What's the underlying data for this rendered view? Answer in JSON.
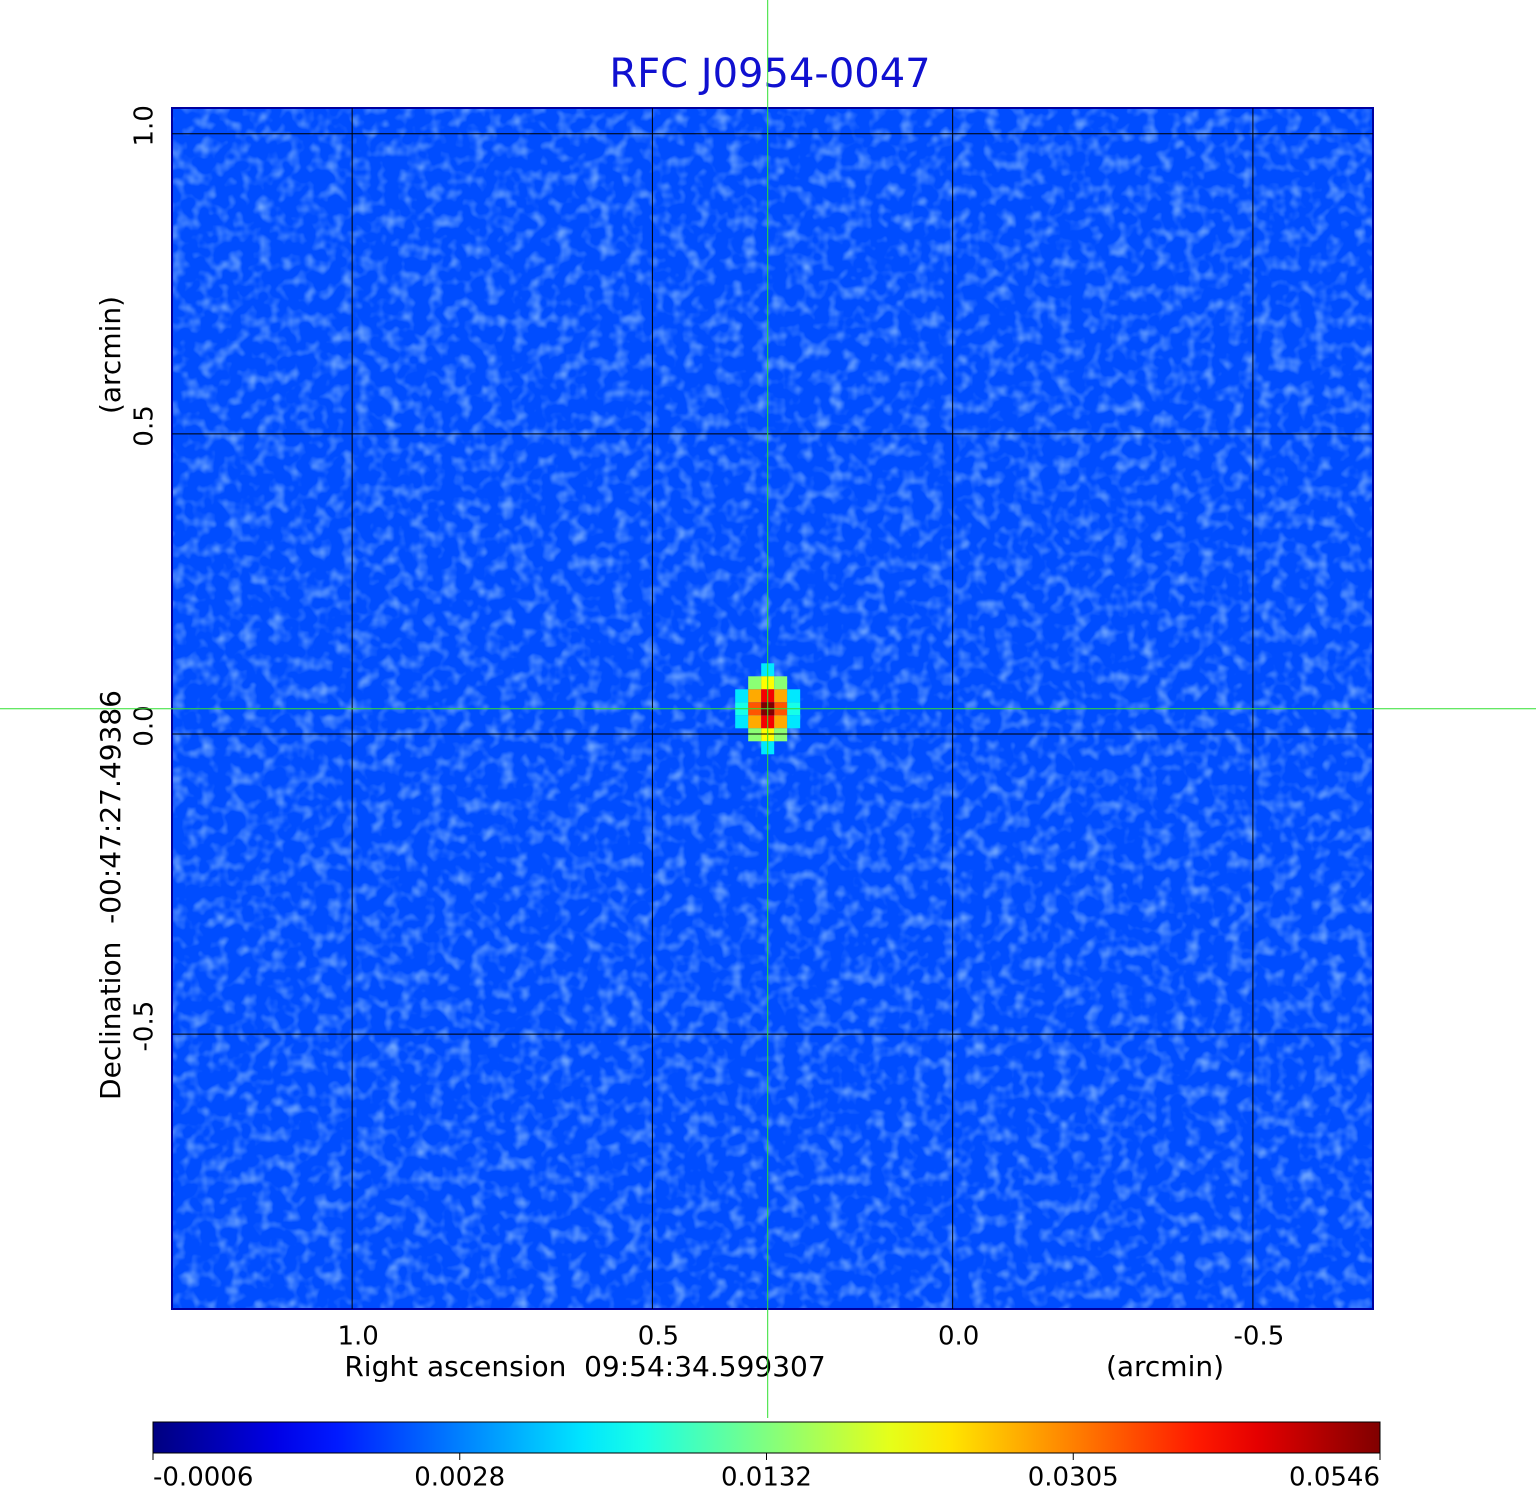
{
  "chart_data": {
    "type": "image",
    "title": "RFC J0954-0047",
    "x_label": "Right ascension  09:54:34.599307",
    "x_unit": "(arcmin)",
    "y_label": "Declination  -00:47:27.49386",
    "y_unit": "(arcmin)",
    "xlim": [
      1.3,
      -0.7
    ],
    "xticks": [
      1.0,
      0.5,
      0.0,
      -0.5
    ],
    "ylim": [
      -0.958,
      1.043
    ],
    "yticks": [
      1.0,
      0.5,
      0.0,
      -0.5
    ],
    "xtick_labels": [
      "1.0",
      "0.5",
      "0.0",
      "-0.5"
    ],
    "ytick_labels": [
      "1.0",
      "0.5",
      "0.0",
      "-0.5"
    ],
    "grid": true,
    "source": {
      "x": 0.308,
      "y": 0.042,
      "peak": 0.0546
    },
    "colorbar_ticks": [
      -0.0006,
      0.0028,
      0.0132,
      0.0305,
      0.0546
    ],
    "colormap": "jet"
  }
}
